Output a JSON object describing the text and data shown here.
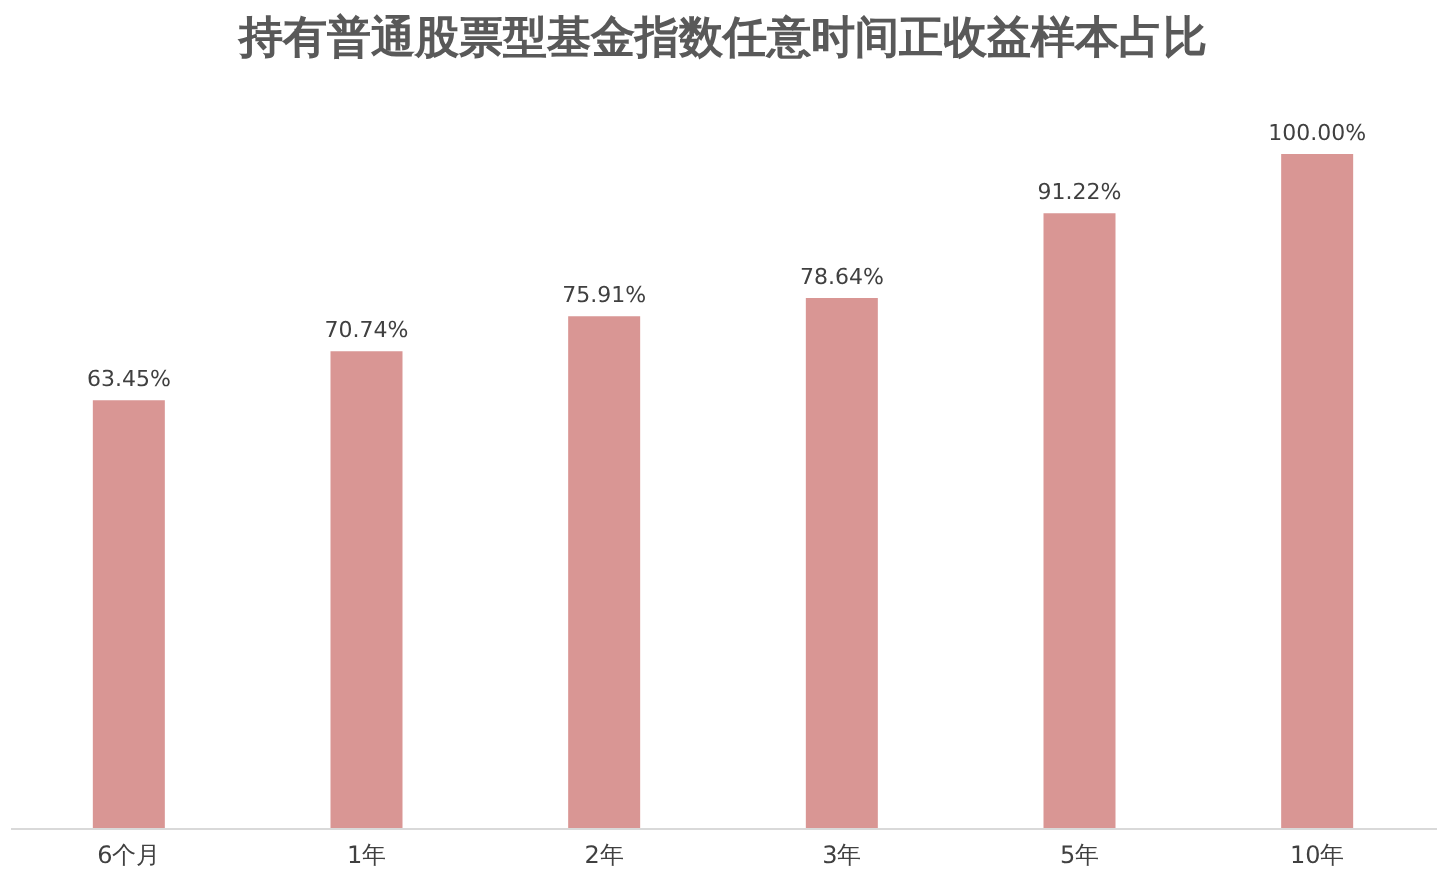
{
  "chart_data": {
    "type": "bar",
    "title": "持有普通股票型基金指数任意时间正收益样本占比",
    "categories": [
      "6个月",
      "1年",
      "2年",
      "3年",
      "5年",
      "10年"
    ],
    "values": [
      63.45,
      70.74,
      75.91,
      78.64,
      91.22,
      100.0
    ],
    "value_labels": [
      "63.45%",
      "70.74%",
      "75.91%",
      "78.64%",
      "91.22%",
      "100.00%"
    ],
    "color": "#d99694",
    "grid": false,
    "tick_labels": "x"
  }
}
